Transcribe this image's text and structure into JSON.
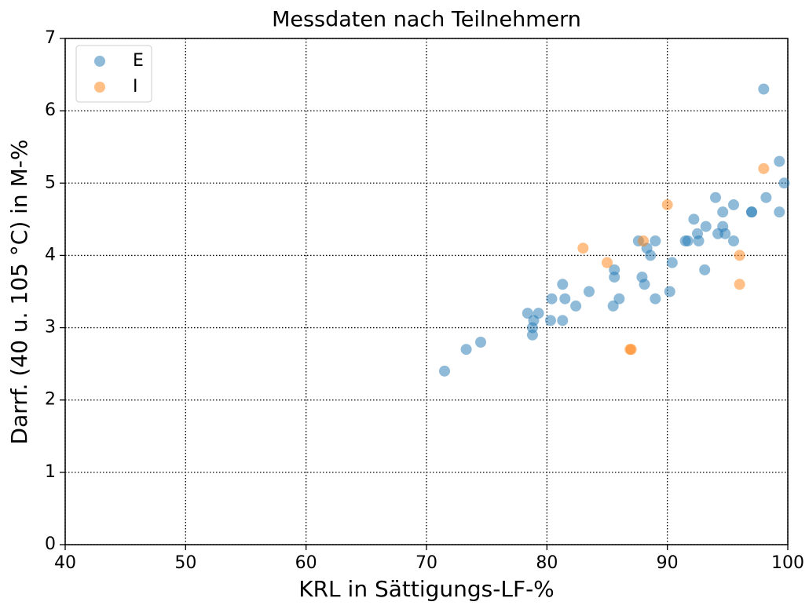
{
  "chart_data": {
    "type": "scatter",
    "title": "Messdaten nach Teilnehmern",
    "xlabel": "KRL in Sättigungs-LF-%",
    "ylabel": "Darrf. (40 u. 105 °C) in M-%",
    "xlim": [
      40,
      100
    ],
    "xticks": [
      40,
      50,
      60,
      70,
      80,
      90,
      100
    ],
    "ylim": [
      0,
      7
    ],
    "yticks": [
      0,
      1,
      2,
      3,
      4,
      5,
      6,
      7
    ],
    "grid": true,
    "legend": "upper left",
    "series": [
      {
        "name": "E",
        "color": "#1f77b4",
        "x": [
          98.0,
          99.3,
          99.7,
          98.2,
          99.3,
          97.0,
          97.0,
          95.5,
          94.0,
          94.6,
          92.2,
          93.2,
          94.6,
          92.5,
          94.2,
          94.8,
          95.5,
          92.6,
          91.5,
          91.7,
          89.0,
          87.6,
          88.3,
          88.6,
          90.4,
          93.1,
          85.6,
          85.6,
          87.9,
          88.1,
          90.2,
          89.0,
          86.0,
          85.5,
          83.5,
          81.3,
          81.5,
          80.4,
          82.4,
          79.3,
          78.4,
          78.9,
          80.3,
          81.3,
          78.8,
          78.8,
          74.5,
          73.3,
          71.5
        ],
        "values": [
          6.3,
          5.3,
          5.0,
          4.8,
          4.6,
          4.6,
          4.6,
          4.7,
          4.8,
          4.6,
          4.5,
          4.4,
          4.4,
          4.3,
          4.3,
          4.3,
          4.2,
          4.2,
          4.2,
          4.2,
          4.2,
          4.2,
          4.1,
          4.0,
          3.9,
          3.8,
          3.8,
          3.7,
          3.7,
          3.6,
          3.5,
          3.4,
          3.4,
          3.3,
          3.5,
          3.6,
          3.4,
          3.4,
          3.3,
          3.2,
          3.2,
          3.1,
          3.1,
          3.1,
          3.0,
          2.9,
          2.8,
          2.7,
          2.4
        ]
      },
      {
        "name": "I",
        "color": "#ff7f0e",
        "x": [
          98.0,
          90.0,
          88.0,
          83.0,
          85.0,
          96.0,
          96.0,
          87.0,
          86.9
        ],
        "values": [
          5.2,
          4.7,
          4.2,
          4.1,
          3.9,
          4.0,
          3.6,
          2.7,
          2.7
        ]
      }
    ]
  }
}
